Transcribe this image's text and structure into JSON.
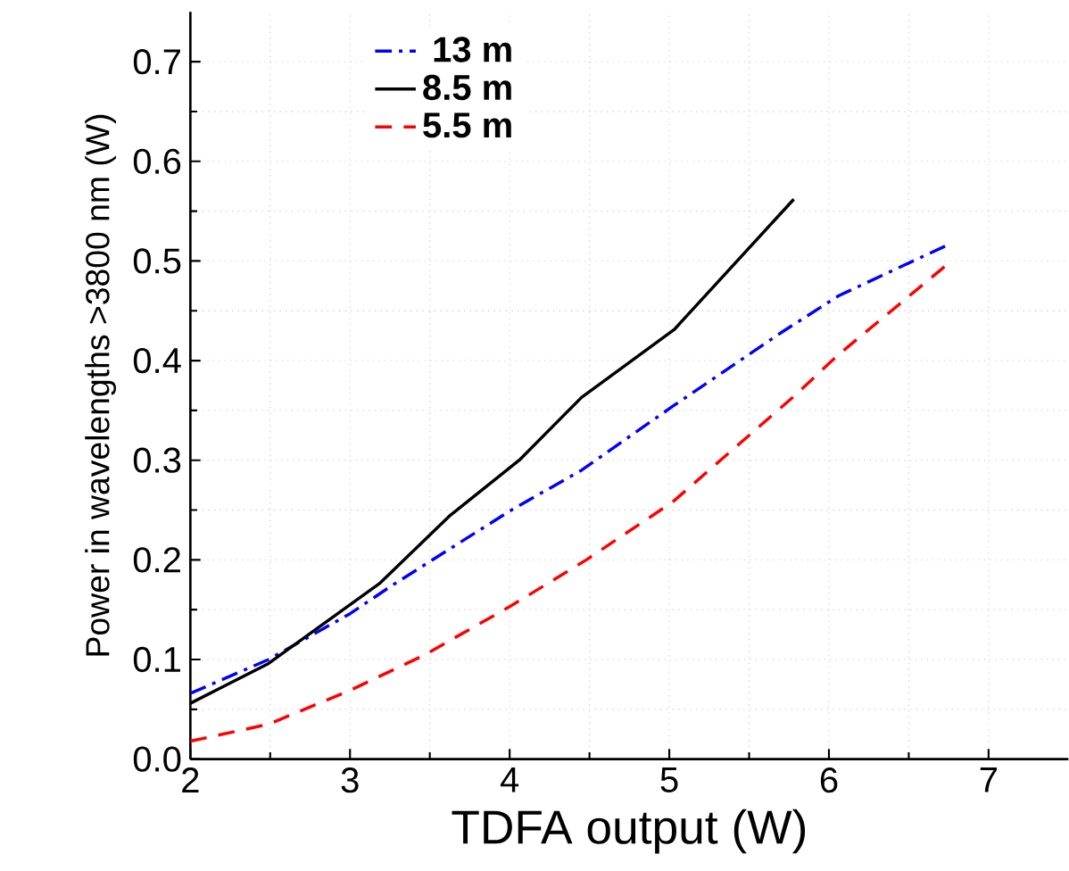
{
  "chart_data": {
    "type": "line",
    "xlabel": "TDFA output (W)",
    "ylabel": "Power in wavelengths >3800 nm (W)",
    "xlim": [
      2,
      7.5
    ],
    "xticks": [
      2,
      3,
      4,
      5,
      6,
      7
    ],
    "ylim": [
      0,
      0.75
    ],
    "yticks": [
      {
        "value": 0,
        "label": "0.0"
      },
      0.1,
      0.2,
      0.3,
      0.4,
      0.5,
      0.6,
      0.7
    ],
    "grid": true,
    "legend": "top left",
    "marker": "none",
    "series": [
      {
        "name": "13 m",
        "color": "#0000ff",
        "line_style": "dashdot",
        "x": [
          2,
          2.49,
          3.0,
          3.27,
          4.0,
          4.45,
          5.02,
          5.7,
          6.06,
          6.38,
          6.73
        ],
        "values": [
          0.066,
          0.1,
          0.146,
          0.175,
          0.249,
          0.29,
          0.354,
          0.428,
          0.465,
          0.489,
          0.515
        ]
      },
      {
        "name": "8.5 m",
        "color": "#000000",
        "line_style": "solid",
        "x": [
          2,
          2.49,
          3.19,
          3.63,
          4.06,
          4.45,
          5.03,
          5.78
        ],
        "values": [
          0.056,
          0.096,
          0.177,
          0.245,
          0.3,
          0.363,
          0.431,
          0.562
        ]
      },
      {
        "name": "5.5 m",
        "color": "#ff0000",
        "line_style": "dashed",
        "x": [
          2,
          2.49,
          3.0,
          3.46,
          4.0,
          4.48,
          5.02,
          5.78,
          6.06,
          6.76
        ],
        "values": [
          0.018,
          0.035,
          0.069,
          0.104,
          0.153,
          0.2,
          0.258,
          0.364,
          0.406,
          0.499
        ]
      }
    ]
  }
}
